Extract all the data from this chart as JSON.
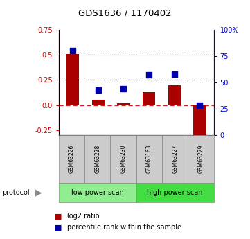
{
  "title": "GDS1636 / 1170402",
  "samples": [
    "GSM63226",
    "GSM63228",
    "GSM63230",
    "GSM63163",
    "GSM63227",
    "GSM63229"
  ],
  "log2_ratio": [
    0.51,
    0.05,
    0.02,
    0.13,
    0.2,
    -0.3
  ],
  "percentile_rank": [
    80,
    43,
    44,
    57,
    58,
    28
  ],
  "ylim_left": [
    -0.3,
    0.75
  ],
  "ylim_right": [
    0,
    100
  ],
  "yticks_left": [
    -0.25,
    0.0,
    0.25,
    0.5,
    0.75
  ],
  "yticks_right": [
    0,
    25,
    50,
    75,
    100
  ],
  "hlines": [
    0.25,
    0.5
  ],
  "protocol_groups": [
    {
      "label": "low power scan",
      "indices": [
        0,
        1,
        2
      ],
      "color": "#90EE90"
    },
    {
      "label": "high power scan",
      "indices": [
        3,
        4,
        5
      ],
      "color": "#44DD44"
    }
  ],
  "bar_color": "#AA0000",
  "scatter_color": "#0000AA",
  "bar_width": 0.5,
  "dotted_line_color": "black",
  "zero_line_color": "#CC2222",
  "background_color": "#ffffff",
  "tick_color_left": "#CC0000",
  "tick_color_right": "#0000CC",
  "label_box_color": "#CCCCCC",
  "legend_items": [
    {
      "label": "log2 ratio",
      "color": "#AA0000"
    },
    {
      "label": "percentile rank within the sample",
      "color": "#0000AA"
    }
  ]
}
